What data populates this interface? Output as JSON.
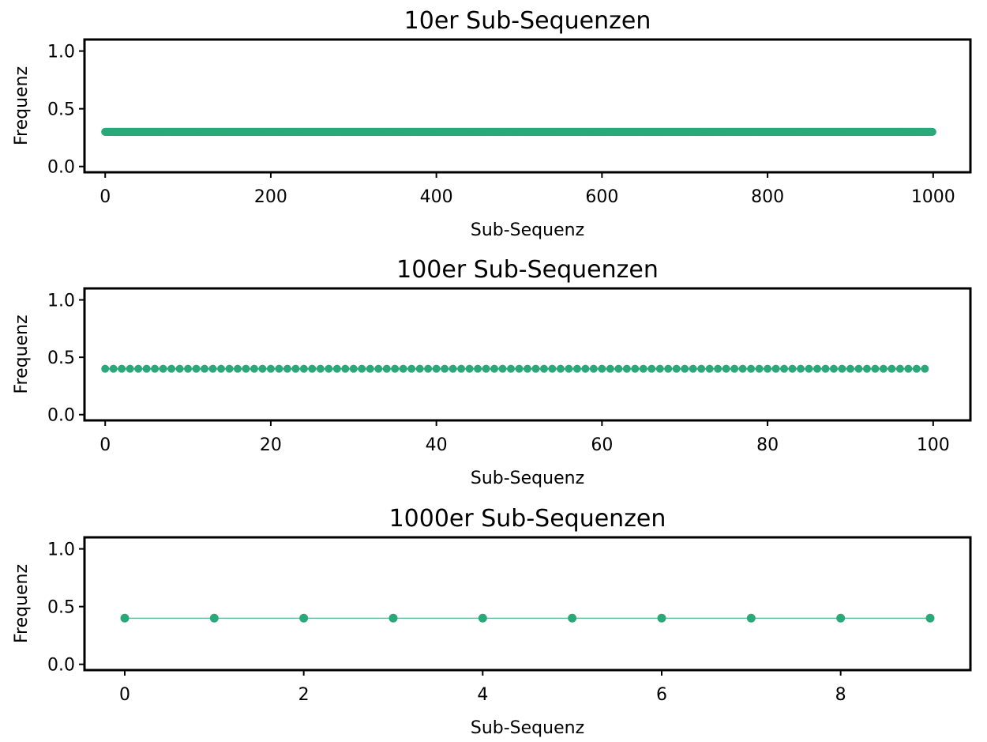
{
  "chart_data": [
    {
      "type": "scatter",
      "title": "10er Sub-Sequenzen",
      "xlabel": "Sub-Sequenz",
      "ylabel": "Frequenz",
      "xlim": [
        -25,
        1045
      ],
      "ylim": [
        -0.05,
        1.1
      ],
      "xticks": [
        0,
        200,
        400,
        600,
        800,
        1000
      ],
      "xtick_labels": [
        "0",
        "200",
        "400",
        "600",
        "800",
        "1000"
      ],
      "yticks": [
        0.0,
        0.5,
        1.0
      ],
      "ytick_labels": [
        "0.0",
        "0.5",
        "1.0"
      ],
      "grid": false,
      "series": [
        {
          "x_start": 0,
          "x_end": 999,
          "x_step": 1,
          "y_constant": 0.3,
          "connected": true,
          "color": "#2aa879"
        }
      ]
    },
    {
      "type": "scatter",
      "title": "100er Sub-Sequenzen",
      "xlabel": "Sub-Sequenz",
      "ylabel": "Frequenz",
      "xlim": [
        -2.5,
        104.5
      ],
      "ylim": [
        -0.05,
        1.1
      ],
      "xticks": [
        0,
        20,
        40,
        60,
        80,
        100
      ],
      "xtick_labels": [
        "0",
        "20",
        "40",
        "60",
        "80",
        "100"
      ],
      "yticks": [
        0.0,
        0.5,
        1.0
      ],
      "ytick_labels": [
        "0.0",
        "0.5",
        "1.0"
      ],
      "grid": false,
      "series": [
        {
          "x_start": 0,
          "x_end": 99,
          "x_step": 1,
          "y_constant": 0.4,
          "connected": true,
          "color": "#2aa879"
        }
      ]
    },
    {
      "type": "line",
      "title": "1000er Sub-Sequenzen",
      "xlabel": "Sub-Sequenz",
      "ylabel": "Frequenz",
      "xlim": [
        -0.45,
        9.45
      ],
      "ylim": [
        -0.05,
        1.1
      ],
      "xticks": [
        0,
        2,
        4,
        6,
        8
      ],
      "xtick_labels": [
        "0",
        "2",
        "4",
        "6",
        "8"
      ],
      "yticks": [
        0.0,
        0.5,
        1.0
      ],
      "ytick_labels": [
        "0.0",
        "0.5",
        "1.0"
      ],
      "grid": false,
      "series": [
        {
          "x_start": 0,
          "x_end": 9,
          "x_step": 1,
          "y_constant": 0.4,
          "connected": true,
          "color": "#2aa879"
        }
      ]
    }
  ]
}
